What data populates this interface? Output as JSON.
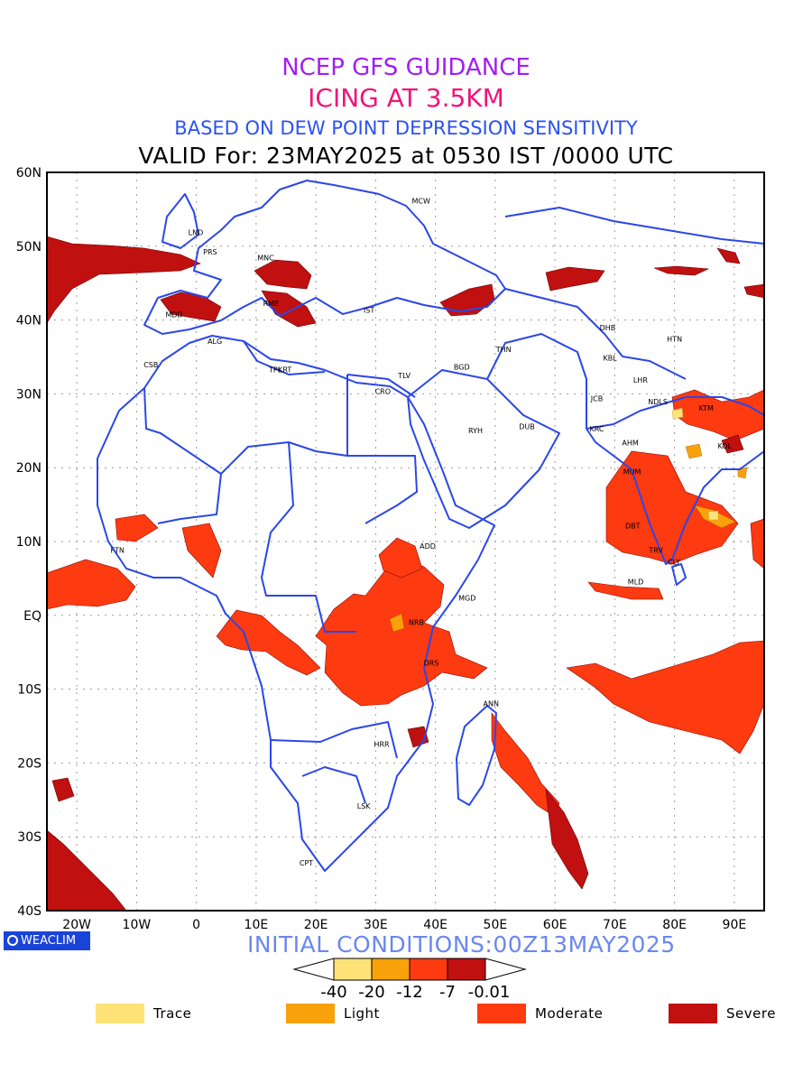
{
  "title": {
    "line1": "NCEP GFS GUIDANCE",
    "line2": "ICING AT 3.5KM",
    "line3": "BASED ON DEW POINT DEPRESSION SENSITIVITY",
    "line4": "VALID For: 23MAY2025 at 0530 IST /0000 UTC"
  },
  "map": {
    "lon_ticks": [
      "20W",
      "10W",
      "0",
      "10E",
      "20E",
      "30E",
      "40E",
      "50E",
      "60E",
      "70E",
      "80E",
      "90E"
    ],
    "lat_ticks": [
      "60N",
      "50N",
      "40N",
      "30N",
      "20N",
      "10N",
      "EQ",
      "10S",
      "20S",
      "30S",
      "40S"
    ],
    "lon_range": [
      -25,
      95
    ],
    "lat_range": [
      -40,
      60
    ],
    "stations": [
      {
        "name": "MCW",
        "lon": 37.6,
        "lat": 55.8
      },
      {
        "name": "LND",
        "lon": -0.1,
        "lat": 51.5
      },
      {
        "name": "PRS",
        "lon": 2.3,
        "lat": 48.9
      },
      {
        "name": "MNC",
        "lon": 11.6,
        "lat": 48.1
      },
      {
        "name": "MDD",
        "lon": -3.7,
        "lat": 40.4
      },
      {
        "name": "RME",
        "lon": 12.5,
        "lat": 41.9
      },
      {
        "name": "IST",
        "lon": 28.9,
        "lat": 41.0
      },
      {
        "name": "ALG",
        "lon": 3.1,
        "lat": 36.8
      },
      {
        "name": "CSB",
        "lon": -7.6,
        "lat": 33.6
      },
      {
        "name": "TPL",
        "lon": 13.2,
        "lat": 32.9
      },
      {
        "name": "KRT",
        "lon": 14.8,
        "lat": 32.9
      },
      {
        "name": "TLV",
        "lon": 34.8,
        "lat": 32.1
      },
      {
        "name": "CRO",
        "lon": 31.2,
        "lat": 30.0
      },
      {
        "name": "BGD",
        "lon": 44.4,
        "lat": 33.3
      },
      {
        "name": "THN",
        "lon": 51.4,
        "lat": 35.7
      },
      {
        "name": "RYH",
        "lon": 46.7,
        "lat": 24.7
      },
      {
        "name": "DUB",
        "lon": 55.3,
        "lat": 25.2
      },
      {
        "name": "DHB",
        "lon": 68.8,
        "lat": 38.6
      },
      {
        "name": "KBL",
        "lon": 69.2,
        "lat": 34.5
      },
      {
        "name": "HTN",
        "lon": 80.0,
        "lat": 37.1
      },
      {
        "name": "LHR",
        "lon": 74.3,
        "lat": 31.5
      },
      {
        "name": "JCB",
        "lon": 67.0,
        "lat": 29.0
      },
      {
        "name": "NDLS",
        "lon": 77.2,
        "lat": 28.6
      },
      {
        "name": "KTM",
        "lon": 85.3,
        "lat": 27.7
      },
      {
        "name": "KRC",
        "lon": 67.0,
        "lat": 24.9
      },
      {
        "name": "AHM",
        "lon": 72.6,
        "lat": 23.0
      },
      {
        "name": "KOL",
        "lon": 88.4,
        "lat": 22.6
      },
      {
        "name": "MUM",
        "lon": 72.9,
        "lat": 19.1
      },
      {
        "name": "DBT",
        "lon": 73.0,
        "lat": 11.8
      },
      {
        "name": "TRV",
        "lon": 76.9,
        "lat": 8.5
      },
      {
        "name": "CLY",
        "lon": 79.9,
        "lat": 6.9
      },
      {
        "name": "MLD",
        "lon": 73.5,
        "lat": 4.2
      },
      {
        "name": "FTN",
        "lon": -13.2,
        "lat": 8.5
      },
      {
        "name": "ADD",
        "lon": 38.7,
        "lat": 9.0
      },
      {
        "name": "MGD",
        "lon": 45.3,
        "lat": 2.0
      },
      {
        "name": "NRB",
        "lon": 36.8,
        "lat": -1.3
      },
      {
        "name": "DRS",
        "lon": 39.3,
        "lat": -6.8
      },
      {
        "name": "ANN",
        "lon": 49.3,
        "lat": -12.3
      },
      {
        "name": "HRR",
        "lon": 31.0,
        "lat": -17.8
      },
      {
        "name": "LSK",
        "lon": 28.0,
        "lat": -26.2
      },
      {
        "name": "CPT",
        "lon": 18.4,
        "lat": -33.9
      }
    ]
  },
  "brand": "WEACLIM",
  "initial_conditions": "INITIAL CONDITIONS:00Z13MAY2025",
  "colorbar": {
    "labels": [
      "-40",
      "-20",
      "-12",
      "-7",
      "-0.01"
    ],
    "colors": [
      "#fde377",
      "#f8a10b",
      "#fe3a10",
      "#c01010"
    ]
  },
  "legend": [
    {
      "label": "Trace",
      "color": "#fde377"
    },
    {
      "label": "Light",
      "color": "#f8a10b"
    },
    {
      "label": "Moderate",
      "color": "#fe3a10"
    },
    {
      "label": "Severe",
      "color": "#c01010"
    }
  ],
  "palette": {
    "coast": "#2b47e8",
    "grid": "#9a9a9a",
    "moderate": "#fe3a10",
    "severe": "#c01010",
    "light": "#f8a10b",
    "trace": "#fde377"
  }
}
